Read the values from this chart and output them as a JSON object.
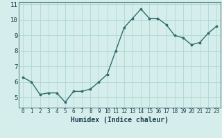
{
  "x": [
    0,
    1,
    2,
    3,
    4,
    5,
    6,
    7,
    8,
    9,
    10,
    11,
    12,
    13,
    14,
    15,
    16,
    17,
    18,
    19,
    20,
    21,
    22,
    23
  ],
  "y": [
    6.3,
    6.0,
    5.2,
    5.3,
    5.3,
    4.7,
    5.4,
    5.4,
    5.55,
    6.0,
    6.5,
    8.0,
    9.5,
    10.1,
    10.7,
    10.1,
    10.1,
    9.7,
    9.0,
    8.85,
    8.4,
    8.55,
    9.15,
    9.6
  ],
  "xlabel": "Humidex (Indice chaleur)",
  "xlim": [
    -0.5,
    23.5
  ],
  "ylim": [
    4.35,
    11.15
  ],
  "yticks": [
    5,
    6,
    7,
    8,
    9,
    10,
    11
  ],
  "xticks": [
    0,
    1,
    2,
    3,
    4,
    5,
    6,
    7,
    8,
    9,
    10,
    11,
    12,
    13,
    14,
    15,
    16,
    17,
    18,
    19,
    20,
    21,
    22,
    23
  ],
  "line_color": "#2e6b6b",
  "marker_color": "#2e6b6b",
  "bg_color": "#d5eeec",
  "grid_color": "#aed8d5",
  "axis_label_color": "#1a3a4a",
  "tick_label_color": "#1a3a4a",
  "border_color": "#5a8a8a",
  "xlabel_fontsize": 7.0,
  "tick_fontsize_x": 5.5,
  "tick_fontsize_y": 6.5
}
